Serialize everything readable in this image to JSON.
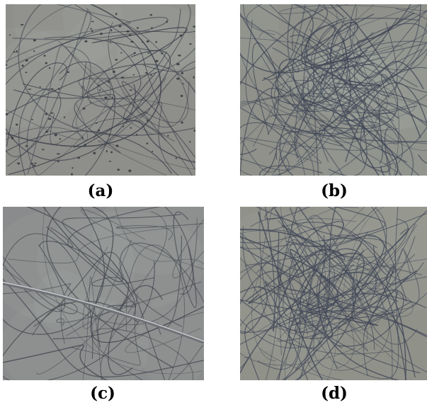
{
  "figure": {
    "panels": [
      {
        "id": "a",
        "label": "(a)",
        "background": "#8e8e8a",
        "fiber_color": "#3c3f4a",
        "density": "sparse",
        "beaded": true
      },
      {
        "id": "b",
        "label": "(b)",
        "background": "#8f918a",
        "fiber_color": "#404656",
        "density": "dense",
        "beaded": false
      },
      {
        "id": "c",
        "label": "(c)",
        "background": "#8a8b8c",
        "fiber_color": "#45474f",
        "density": "sparse",
        "beaded": false,
        "thick_fiber": true
      },
      {
        "id": "d",
        "label": "(d)",
        "background": "#909189",
        "fiber_color": "#424858",
        "density": "dense",
        "beaded": false
      }
    ]
  }
}
